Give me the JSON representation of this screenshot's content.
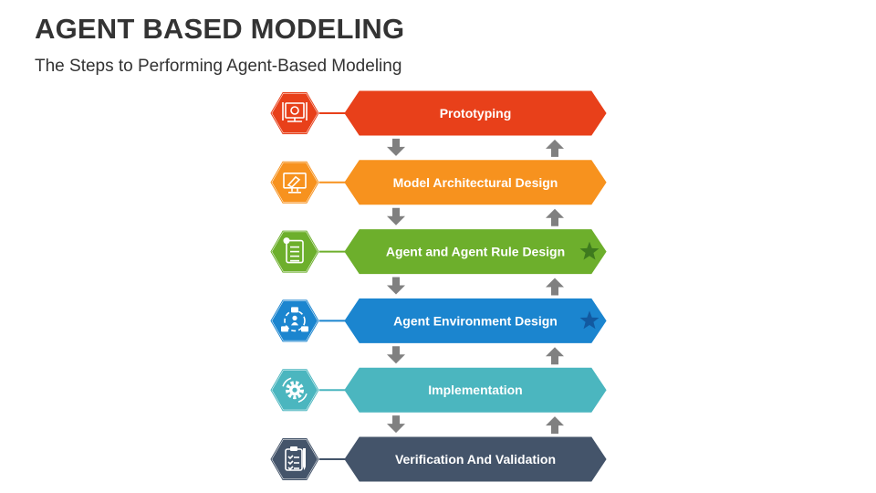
{
  "header": {
    "title": "AGENT BASED MODELING",
    "subtitle": "The Steps to Performing Agent-Based Modeling"
  },
  "steps": [
    {
      "label": "Prototyping",
      "color": "#E8401A",
      "icon": "prototype-icon",
      "star": false
    },
    {
      "label": "Model Architectural Design",
      "color": "#F7921E",
      "icon": "monitor-design-icon",
      "star": false
    },
    {
      "label": "Agent and Agent Rule Design",
      "color": "#6DAF2C",
      "icon": "document-icon",
      "star": true,
      "star_color": "#3E7A1E"
    },
    {
      "label": "Agent Environment Design",
      "color": "#1B85CF",
      "icon": "network-people-icon",
      "star": true,
      "star_color": "#1259A0"
    },
    {
      "label": "Implementation",
      "color": "#4BB6BF",
      "icon": "gear-icon",
      "star": false
    },
    {
      "label": "Verification And Validation",
      "color": "#44546A",
      "icon": "clipboard-checklist-icon",
      "star": false
    }
  ],
  "arrow_color": "#808080"
}
